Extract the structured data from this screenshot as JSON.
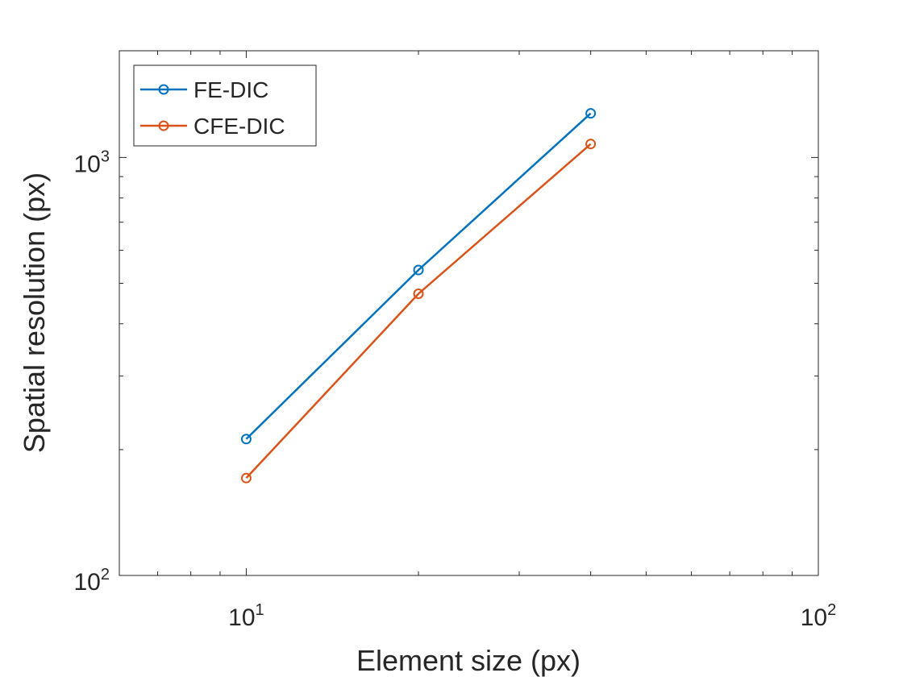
{
  "chart_data": {
    "type": "line",
    "x_scale": "log",
    "y_scale": "log",
    "xlabel": "Element size (px)",
    "ylabel": "Spatial resolution (px)",
    "xlim": [
      6,
      100
    ],
    "ylim": [
      100,
      1800
    ],
    "grid": false,
    "legend_position": "top-left",
    "x_tick_labels": [
      {
        "value": 10,
        "base": "10",
        "exponent": "1"
      },
      {
        "value": 100,
        "base": "10",
        "exponent": "2"
      }
    ],
    "y_tick_labels": [
      {
        "value": 100,
        "base": "10",
        "exponent": "2"
      },
      {
        "value": 1000,
        "base": "10",
        "exponent": "3"
      }
    ],
    "series": [
      {
        "name": "FE-DIC",
        "color": "#0072BD",
        "marker": "circle",
        "x": [
          10,
          20,
          40
        ],
        "y": [
          212,
          538,
          1275
        ]
      },
      {
        "name": "CFE-DIC",
        "color": "#D95319",
        "marker": "circle",
        "x": [
          10,
          20,
          40
        ],
        "y": [
          171,
          472,
          1077
        ]
      }
    ]
  }
}
